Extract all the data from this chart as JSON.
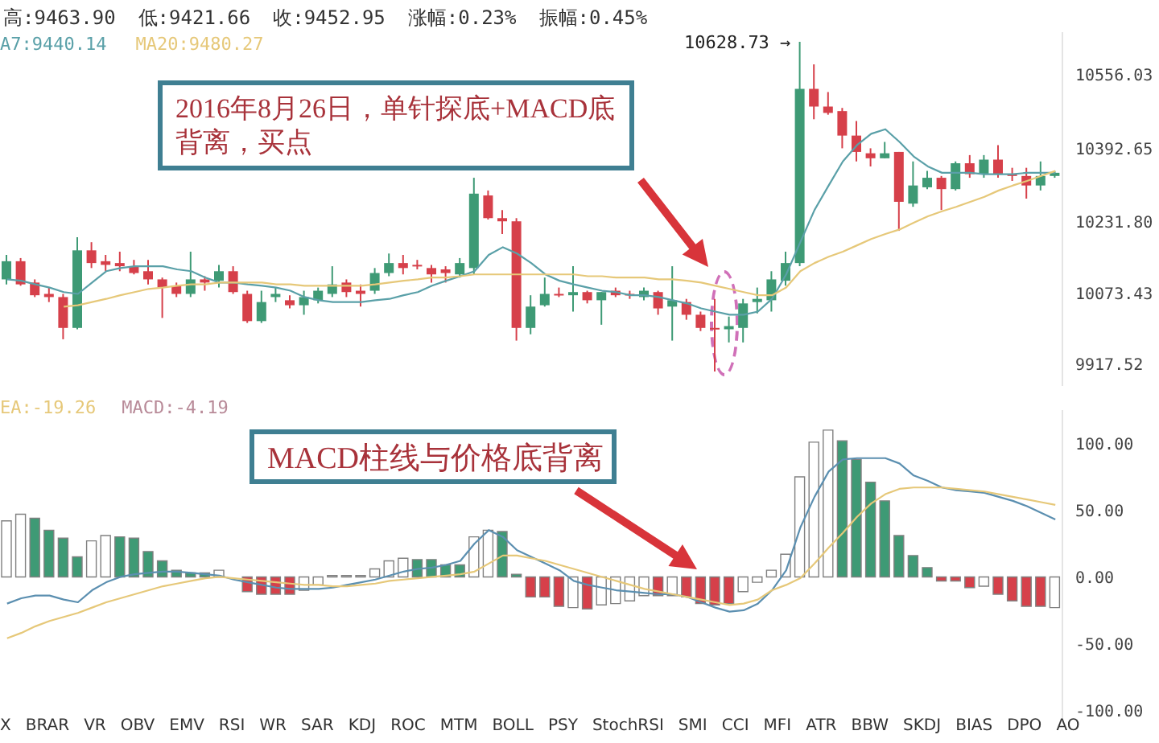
{
  "chart_data": [
    {
      "type": "candlestick",
      "categories": [
        null,
        null,
        null,
        null,
        null,
        null,
        null,
        null,
        null,
        null,
        null,
        null,
        null,
        null,
        null,
        null,
        null,
        null,
        null,
        null,
        null,
        null,
        null,
        null,
        null,
        null,
        null,
        null,
        null,
        null,
        null,
        null,
        null,
        null,
        null,
        null,
        null,
        null,
        null,
        null,
        null,
        null,
        null,
        null,
        null,
        null,
        null,
        null,
        null,
        null,
        null,
        null,
        null,
        null,
        null,
        null,
        null,
        null,
        null,
        null,
        null,
        null,
        null,
        null,
        null,
        null,
        null,
        null,
        null,
        null,
        null,
        null,
        null,
        null,
        null
      ],
      "ohlc": [
        [
          10105,
          10159,
          10094,
          10145
        ],
        [
          10145,
          10152,
          10091,
          10094
        ],
        [
          10098,
          10105,
          10066,
          10070
        ],
        [
          10073,
          10087,
          10055,
          10066
        ],
        [
          10066,
          10073,
          9973,
          9998
        ],
        [
          9998,
          10198,
          9995,
          10169
        ],
        [
          10169,
          10187,
          10130,
          10141
        ],
        [
          10145,
          10159,
          10123,
          10137
        ],
        [
          10141,
          10166,
          10123,
          10134
        ],
        [
          10134,
          10148,
          10116,
          10119
        ],
        [
          10123,
          10148,
          10094,
          10105
        ],
        [
          10105,
          10109,
          10020,
          10087
        ],
        [
          10091,
          10098,
          10066,
          10073
        ],
        [
          10073,
          10166,
          10066,
          10105
        ],
        [
          10105,
          10112,
          10080,
          10098
        ],
        [
          10102,
          10137,
          10087,
          10123
        ],
        [
          10123,
          10134,
          10073,
          10077
        ],
        [
          10073,
          10080,
          10009,
          10013
        ],
        [
          10013,
          10080,
          10009,
          10055
        ],
        [
          10066,
          10087,
          10055,
          10073
        ],
        [
          10059,
          10070,
          10041,
          10048
        ],
        [
          10048,
          10080,
          10027,
          10066
        ],
        [
          10059,
          10087,
          10052,
          10080
        ],
        [
          10073,
          10134,
          10066,
          10094
        ],
        [
          10098,
          10105,
          10066,
          10077
        ],
        [
          10080,
          10094,
          10045,
          10073
        ],
        [
          10080,
          10130,
          10073,
          10119
        ],
        [
          10119,
          10162,
          10112,
          10141
        ],
        [
          10141,
          10159,
          10116,
          10130
        ],
        [
          10137,
          10148,
          10127,
          10134
        ],
        [
          10130,
          10137,
          10098,
          10116
        ],
        [
          10127,
          10134,
          10098,
          10119
        ],
        [
          10116,
          10152,
          10109,
          10141
        ],
        [
          10130,
          10329,
          10116,
          10294
        ],
        [
          10290,
          10301,
          10237,
          10240
        ],
        [
          10240,
          10258,
          10205,
          10233
        ],
        [
          10233,
          10240,
          9970,
          9998
        ],
        [
          9998,
          10070,
          9984,
          10045
        ],
        [
          10048,
          10109,
          10045,
          10073
        ],
        [
          10073,
          10087,
          10066,
          10070
        ],
        [
          10070,
          10134,
          10034,
          10077
        ],
        [
          10077,
          10080,
          10052,
          10059
        ],
        [
          10059,
          10077,
          10005,
          10077
        ],
        [
          10080,
          10087,
          10066,
          10070
        ],
        [
          10073,
          10080,
          10062,
          10070
        ],
        [
          10066,
          10087,
          10059,
          10080
        ],
        [
          10077,
          10080,
          10027,
          10041
        ],
        [
          10045,
          10134,
          9970,
          10059
        ],
        [
          10055,
          10062,
          10016,
          10027
        ],
        [
          10027,
          10034,
          9991,
          9998
        ],
        [
          9998,
          10062,
          9902,
          9995
        ],
        [
          9995,
          10023,
          9966,
          10002
        ],
        [
          9998,
          10062,
          9966,
          10052
        ],
        [
          10055,
          10087,
          10030,
          10062
        ],
        [
          10059,
          10123,
          10034,
          10105
        ],
        [
          10102,
          10166,
          10091,
          10141
        ],
        [
          10141,
          10628.73,
          10134,
          10525
        ],
        [
          10525,
          10579,
          10458,
          10486
        ],
        [
          10486,
          10518,
          10468,
          10472
        ],
        [
          10476,
          10483,
          10394,
          10422
        ],
        [
          10422,
          10454,
          10365,
          10386
        ],
        [
          10383,
          10394,
          10354,
          10372
        ],
        [
          10372,
          10408,
          10372,
          10383
        ],
        [
          10386,
          10386,
          10212,
          10276
        ],
        [
          10272,
          10365,
          10265,
          10312
        ],
        [
          10308,
          10344,
          10304,
          10329
        ],
        [
          10329,
          10333,
          10258,
          10304
        ],
        [
          10304,
          10365,
          10301,
          10361
        ],
        [
          10361,
          10379,
          10329,
          10337
        ],
        [
          10337,
          10379,
          10329,
          10369
        ],
        [
          10369,
          10401,
          10329,
          10337
        ],
        [
          10337,
          10351,
          10322,
          10333
        ],
        [
          10333,
          10351,
          10283,
          10312
        ],
        [
          10312,
          10365,
          10301,
          10333
        ],
        [
          10333,
          10344,
          10329,
          10340
        ]
      ],
      "colors": [
        "#3e9a75",
        "#d6404a",
        "#d6404a",
        "#d6404a",
        "#d6404a",
        "#3e9a75",
        "#d6404a",
        "#d6404a",
        "#d6404a",
        "#d6404a",
        "#d6404a",
        "#d6404a",
        "#d6404a",
        "#3e9a75",
        "#d6404a",
        "#3e9a75",
        "#d6404a",
        "#d6404a",
        "#3e9a75",
        "#3e9a75",
        "#d6404a",
        "#3e9a75",
        "#3e9a75",
        "#3e9a75",
        "#d6404a",
        "#d6404a",
        "#3e9a75",
        "#3e9a75",
        "#d6404a",
        "#d6404a",
        "#d6404a",
        "#d6404a",
        "#3e9a75",
        "#3e9a75",
        "#d6404a",
        "#d6404a",
        "#d6404a",
        "#3e9a75",
        "#3e9a75",
        "#d6404a",
        "#3e9a75",
        "#d6404a",
        "#3e9a75",
        "#d6404a",
        "#d6404a",
        "#3e9a75",
        "#d6404a",
        "#3e9a75",
        "#d6404a",
        "#d6404a",
        "#d6404a",
        "#3e9a75",
        "#3e9a75",
        "#3e9a75",
        "#3e9a75",
        "#3e9a75",
        "#3e9a75",
        "#d6404a",
        "#d6404a",
        "#d6404a",
        "#d6404a",
        "#d6404a",
        "#3e9a75",
        "#d6404a",
        "#3e9a75",
        "#3e9a75",
        "#d6404a",
        "#3e9a75",
        "#d6404a",
        "#3e9a75",
        "#d6404a",
        "#d6404a",
        "#d6404a",
        "#3e9a75",
        "#3e9a75"
      ],
      "series": [
        {
          "type": "line",
          "color": "#5aa0a8",
          "values": [
            10105,
            10102,
            10094,
            10087,
            10077,
            10073,
            10098,
            10123,
            10130,
            10134,
            10134,
            10134,
            10127,
            10123,
            10109,
            10098,
            10098,
            10094,
            10091,
            10087,
            10080,
            10066,
            10059,
            10055,
            10055,
            10055,
            10059,
            10062,
            10070,
            10077,
            10091,
            10102,
            10112,
            10123,
            10159,
            10176,
            10162,
            10141,
            10116,
            10102,
            10094,
            10087,
            10080,
            10077,
            10070,
            10070,
            10066,
            10059,
            10052,
            10041,
            10034,
            10027,
            10027,
            10034,
            10062,
            10116,
            10187,
            10258,
            10312,
            10365,
            10401,
            10426,
            10436,
            10408,
            10376,
            10354,
            10340,
            10340,
            10340,
            10337,
            10337,
            10337,
            10340,
            10340,
            10340
          ]
        },
        {
          "type": "line",
          "color": "#e6c879",
          "values": [
            null,
            null,
            null,
            null,
            10045,
            10048,
            10055,
            10062,
            10070,
            10077,
            10084,
            10087,
            10091,
            10094,
            10094,
            10098,
            10098,
            10098,
            10098,
            10094,
            10094,
            10091,
            10091,
            10091,
            10091,
            10091,
            10094,
            10098,
            10102,
            10105,
            10109,
            10109,
            10112,
            10116,
            10116,
            10116,
            10116,
            10116,
            10116,
            10116,
            10116,
            10112,
            10112,
            10109,
            10109,
            10109,
            10105,
            10105,
            10102,
            10098,
            10091,
            10084,
            10077,
            10070,
            10070,
            10087,
            10123,
            10141,
            10155,
            10166,
            10180,
            10194,
            10205,
            10215,
            10230,
            10244,
            10255,
            10265,
            10276,
            10287,
            10301,
            10312,
            10322,
            10333,
            10344
          ]
        }
      ],
      "ylim": [
        9870,
        10650
      ],
      "yticks": [
        9917.52,
        10073.43,
        {
          "value": 10231.8,
          "label": "10231.80"
        },
        10392.65,
        10556.03
      ],
      "tick_labels": "y",
      "annotations": [
        "高:9463.90",
        "低:9421.66",
        "收:9452.95",
        "涨幅:0.23%",
        "振幅:0.45%",
        "A7:9440.14",
        "MA20:9480.27",
        "2016年8月26日，单针探底+MACD底背离，买点",
        "10628.73 →"
      ]
    },
    {
      "type": "bar",
      "categories": [
        null,
        null,
        null,
        null,
        null,
        null,
        null,
        null,
        null,
        null,
        null,
        null,
        null,
        null,
        null,
        null,
        null,
        null,
        null,
        null,
        null,
        null,
        null,
        null,
        null,
        null,
        null,
        null,
        null,
        null,
        null,
        null,
        null,
        null,
        null,
        null,
        null,
        null,
        null,
        null,
        null,
        null,
        null,
        null,
        null,
        null,
        null,
        null,
        null,
        null,
        null,
        null,
        null,
        null,
        null,
        null,
        null,
        null,
        null,
        null,
        null,
        null,
        null,
        null,
        null,
        null,
        null,
        null,
        null,
        null,
        null,
        null,
        null,
        null,
        null
      ],
      "series": [
        {
          "type": "bar",
          "values": [
            42,
            47,
            44,
            35,
            29,
            15,
            27,
            31,
            30,
            29,
            19,
            12,
            5,
            3,
            3,
            5,
            null,
            -11,
            -13,
            -13,
            -13,
            -10,
            -6,
            1,
            1,
            1,
            6,
            12,
            14,
            13,
            13,
            9,
            9,
            30,
            35,
            34,
            2,
            -15,
            -15,
            -22,
            -23,
            -24,
            -21,
            -20,
            -18,
            -14,
            -14,
            -14,
            -15,
            -20,
            -21,
            -20,
            -11,
            -4,
            5,
            17,
            75,
            101,
            110,
            102,
            88,
            71,
            57,
            31,
            16,
            7,
            -3,
            -3,
            -8,
            -7,
            -13,
            -18,
            -22,
            -22,
            -23
          ],
          "colors": [
            "#ffffff",
            "#ffffff",
            "#3e9a75",
            "#3e9a75",
            "#3e9a75",
            "#3e9a75",
            "#ffffff",
            "#ffffff",
            "#3e9a75",
            "#3e9a75",
            "#3e9a75",
            "#3e9a75",
            "#3e9a75",
            "#3e9a75",
            "#3e9a75",
            "#ffffff",
            "#d6404a",
            "#d6404a",
            "#d6404a",
            "#d6404a",
            "#d6404a",
            "#ffffff",
            "#ffffff",
            "#ffffff",
            "#ffffff",
            "#ffffff",
            "#ffffff",
            "#ffffff",
            "#ffffff",
            "#3e9a75",
            "#3e9a75",
            "#3e9a75",
            "#3e9a75",
            "#ffffff",
            "#ffffff",
            "#3e9a75",
            "#3e9a75",
            "#d6404a",
            "#d6404a",
            "#d6404a",
            "#ffffff",
            "#d6404a",
            "#ffffff",
            "#ffffff",
            "#ffffff",
            "#ffffff",
            "#d6404a",
            "#ffffff",
            "#d6404a",
            "#d6404a",
            "#d6404a",
            "#d6404a",
            "#ffffff",
            "#ffffff",
            "#ffffff",
            "#ffffff",
            "#ffffff",
            "#ffffff",
            "#ffffff",
            "#3e9a75",
            "#3e9a75",
            "#3e9a75",
            "#3e9a75",
            "#3e9a75",
            "#3e9a75",
            "#3e9a75",
            "#d6404a",
            "#d6404a",
            "#d6404a",
            "#ffffff",
            "#d6404a",
            "#d6404a",
            "#d6404a",
            "#d6404a",
            "#ffffff"
          ]
        },
        {
          "type": "line",
          "color": "#5b8fb0",
          "values": [
            -20,
            -16,
            -14,
            -14,
            -17,
            -19,
            -10,
            -4,
            0,
            2,
            3,
            4,
            4,
            3,
            2,
            1,
            -2,
            -4,
            -6,
            -8,
            -9,
            -9,
            -9,
            -8,
            -6,
            -4,
            -2,
            1,
            4,
            6,
            7,
            9,
            12,
            25,
            35,
            30,
            20,
            15,
            10,
            5,
            -3,
            -6,
            -8,
            -10,
            -11,
            -12,
            -13,
            -13,
            -15,
            -19,
            -23,
            -26,
            -25,
            -20,
            -10,
            5,
            37,
            60,
            79,
            88,
            89,
            89,
            89,
            85,
            76,
            72,
            67,
            65,
            64,
            63,
            60,
            57,
            53,
            48,
            43
          ]
        },
        {
          "type": "line",
          "color": "#e6c879",
          "values": [
            -46,
            -42,
            -37,
            -33,
            -30,
            -27,
            -23,
            -19,
            -16,
            -13,
            -10,
            -7,
            -5,
            -3,
            -1,
            0,
            -1,
            -2,
            -3,
            -4,
            -5,
            -6,
            -6,
            -7,
            -7,
            -6,
            -5,
            -3,
            -2,
            -1,
            0,
            1,
            2,
            4,
            10,
            16,
            16,
            14,
            12,
            9,
            6,
            3,
            0,
            -3,
            -6,
            -9,
            -11,
            -13,
            -15,
            -17,
            -19,
            -21,
            -20,
            -17,
            -10,
            -6,
            -1,
            10,
            22,
            33,
            45,
            55,
            62,
            66,
            67,
            67,
            67,
            66,
            65,
            64,
            62,
            60,
            58,
            56,
            54
          ]
        }
      ],
      "ylim": [
        -110,
        125
      ],
      "yticks": [
        {
          "value": -100,
          "label": "-100.00"
        },
        {
          "value": -50,
          "label": "-50.00"
        },
        {
          "value": 0,
          "label": "0.00"
        },
        {
          "value": 50,
          "label": "50.00"
        },
        {
          "value": 100,
          "label": "100.00"
        }
      ],
      "tick_labels": "y",
      "annotations": [
        "EA:-19.26",
        "MACD:-4.19",
        "MACD柱线与价格底背离",
        "X",
        "BRAR",
        "VR",
        "OBV",
        "EMV",
        "RSI",
        "WR",
        "SAR",
        "KDJ",
        "ROC",
        "MTM",
        "BOLL",
        "PSY",
        "StochRSI",
        "SMI",
        "CCI",
        "MFI",
        "ATR",
        "BBW",
        "SKDJ",
        "BIAS",
        "DPO",
        "AO"
      ]
    }
  ]
}
